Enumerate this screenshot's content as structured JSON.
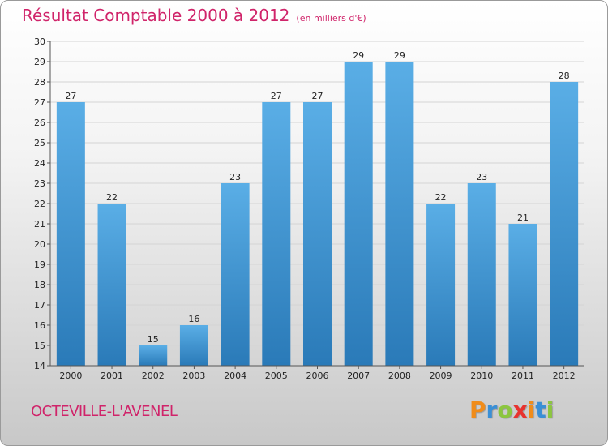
{
  "chart_data": {
    "type": "bar",
    "title": "Résultat Comptable 2000 à 2012",
    "subtitle": "(en milliers d'€)",
    "categories": [
      "2000",
      "2001",
      "2002",
      "2003",
      "2004",
      "2005",
      "2006",
      "2007",
      "2008",
      "2009",
      "2010",
      "2011",
      "2012"
    ],
    "values": [
      27,
      22,
      15,
      16,
      23,
      27,
      27,
      29,
      29,
      22,
      23,
      21,
      28
    ],
    "ylim": [
      14,
      30
    ],
    "yticks": [
      14,
      15,
      16,
      17,
      18,
      19,
      20,
      21,
      22,
      23,
      24,
      25,
      26,
      27,
      28,
      29,
      30
    ],
    "xlabel": "",
    "ylabel": "",
    "grid": true,
    "bar_color_top": "#5aaee6",
    "bar_color_bottom": "#2a7ab8"
  },
  "footer": {
    "commune": "OCTEVILLE-L'AVENEL"
  },
  "logo": {
    "letters": [
      "P",
      "r",
      "o",
      "x",
      "i",
      "t",
      "i"
    ],
    "colors": [
      "#f08c1a",
      "#3a8fd6",
      "#8cc63f",
      "#e8322e",
      "#f08c1a",
      "#3a8fd6",
      "#8cc63f"
    ]
  }
}
